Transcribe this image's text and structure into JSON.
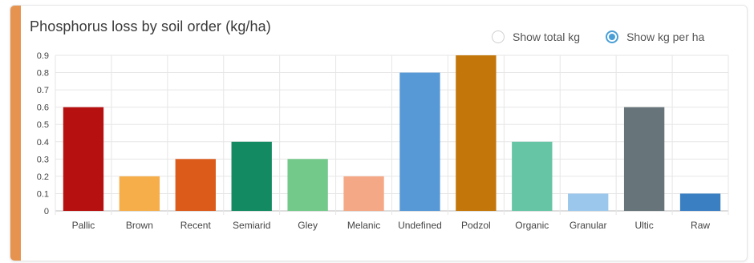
{
  "title": "Phosphorus loss by soil order (kg/ha)",
  "options": [
    {
      "label": "Show total kg",
      "checked": false
    },
    {
      "label": "Show kg per ha",
      "checked": true
    }
  ],
  "chart_data": {
    "type": "bar",
    "categories": [
      "Pallic",
      "Brown",
      "Recent",
      "Semiarid",
      "Gley",
      "Melanic",
      "Undefined",
      "Podzol",
      "Organic",
      "Granular",
      "Ultic",
      "Raw"
    ],
    "values": [
      0.6,
      0.2,
      0.3,
      0.4,
      0.3,
      0.2,
      0.8,
      0.9,
      0.4,
      0.1,
      0.6,
      0.1
    ],
    "colors": [
      "#b71010",
      "#f5ae4a",
      "#dc5a1a",
      "#138a61",
      "#72c98a",
      "#f4a886",
      "#5799d7",
      "#c3770a",
      "#66c5a5",
      "#9cc7ec",
      "#67757b",
      "#3b7fc3"
    ],
    "yticks": [
      "0",
      "0.1",
      "0.2",
      "0.3",
      "0.4",
      "0.5",
      "0.6",
      "0.7",
      "0.8",
      "0.9"
    ],
    "ylim": [
      0,
      0.9
    ],
    "grid": true
  }
}
